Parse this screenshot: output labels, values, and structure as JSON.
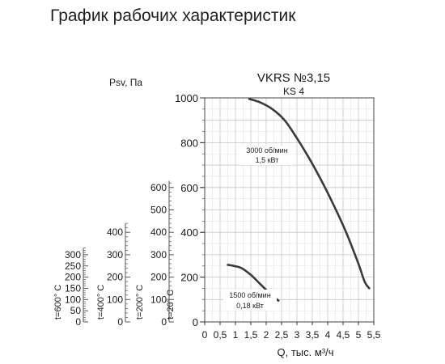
{
  "page": {
    "title": "График рабочих характеристик"
  },
  "chart_data": {
    "type": "line",
    "title": "VKRS №3,15",
    "subtitle": "KS 4",
    "xlabel": "Q, тыс. м³/ч",
    "xlim": [
      0,
      5.5
    ],
    "x_ticks": [
      "0",
      "0,5",
      "1",
      "1,5",
      "2",
      "2,5",
      "3",
      "3,5",
      "4",
      "4,5",
      "5",
      "5,5"
    ],
    "x_tick_values": [
      0,
      0.5,
      1,
      1.5,
      2,
      2.5,
      3,
      3.5,
      4,
      4.5,
      5,
      5.5
    ],
    "ylim": [
      0,
      1000
    ],
    "y_ticks": [
      "0",
      "200",
      "400",
      "600",
      "800",
      "1000"
    ],
    "y_tick_values": [
      0,
      200,
      400,
      600,
      800,
      1000
    ],
    "grid": true,
    "series": [
      {
        "label_line1": "3000 об/мин",
        "label_line2": "1,5 кВт",
        "points": [
          [
            1.45,
            995
          ],
          [
            1.8,
            980
          ],
          [
            2.2,
            950
          ],
          [
            2.6,
            900
          ],
          [
            3.0,
            820
          ],
          [
            3.4,
            730
          ],
          [
            3.8,
            630
          ],
          [
            4.2,
            520
          ],
          [
            4.6,
            400
          ],
          [
            5.0,
            260
          ],
          [
            5.2,
            180
          ],
          [
            5.35,
            150
          ]
        ]
      },
      {
        "label_line1": "1500 об/мин",
        "label_line2": "0,18 кВт",
        "points": [
          [
            0.75,
            255
          ],
          [
            0.95,
            250
          ],
          [
            1.2,
            240
          ],
          [
            1.5,
            210
          ],
          [
            1.8,
            170
          ],
          [
            2.1,
            130
          ],
          [
            2.4,
            95
          ]
        ]
      }
    ],
    "auxiliary_axes": {
      "header": "Psv, Па",
      "scales": [
        {
          "temperature_label": "t=600° C",
          "ticks": [
            "0",
            "50",
            "100",
            "150",
            "200",
            "250",
            "300"
          ],
          "tick_values": [
            0,
            50,
            100,
            150,
            200,
            250,
            300
          ],
          "max": 330
        },
        {
          "temperature_label": "t=400° C",
          "ticks": [
            "0",
            "100",
            "200",
            "300",
            "400"
          ],
          "tick_values": [
            0,
            100,
            200,
            300,
            400
          ],
          "max": 440
        },
        {
          "temperature_label": "t=200° C",
          "ticks": [
            "0",
            "100",
            "200",
            "300",
            "400",
            "500",
            "600"
          ],
          "tick_values": [
            0,
            100,
            200,
            300,
            400,
            500,
            600
          ],
          "max": 630
        },
        {
          "temperature_label": "t=20° C",
          "ticks": [
            "0",
            "200",
            "400",
            "600",
            "800",
            "1000"
          ],
          "tick_values": [
            0,
            200,
            400,
            600,
            800,
            1000
          ],
          "max": 1000
        }
      ]
    }
  }
}
